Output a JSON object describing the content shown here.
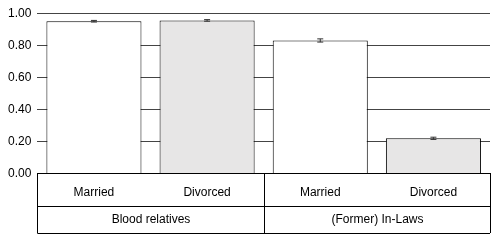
{
  "chart_data": {
    "type": "bar",
    "categories": [
      "Married",
      "Divorced",
      "Married",
      "Divorced"
    ],
    "category_groups": [
      "Blood relatives",
      "Blood relatives",
      "(Former) In-Laws",
      "(Former) In-Laws"
    ],
    "values": [
      0.95,
      0.955,
      0.83,
      0.22
    ],
    "errors": [
      0.005,
      0.005,
      0.01,
      0.007
    ],
    "colors": [
      "#ffffff",
      "#e7e6e6",
      "#ffffff",
      "#e7e6e6"
    ],
    "ylim": [
      0,
      1
    ],
    "yticks": [
      {
        "value": 0,
        "label": "0.00"
      },
      {
        "value": 0.2,
        "label": "0.20"
      },
      {
        "value": 0.4,
        "label": "0.40"
      },
      {
        "value": 0.6,
        "label": "0.60"
      },
      {
        "value": 0.8,
        "label": "0.80"
      },
      {
        "value": 1,
        "label": "1.00"
      }
    ],
    "grid": true
  }
}
